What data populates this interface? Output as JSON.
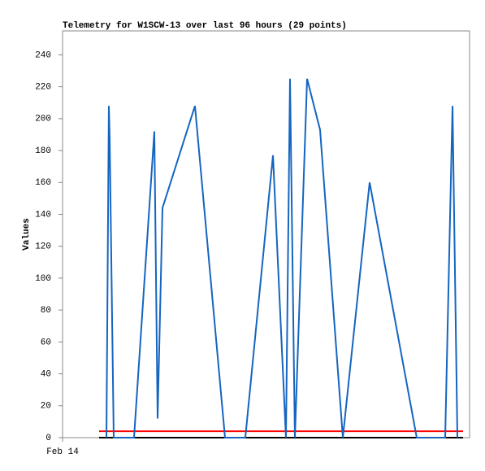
{
  "chart_data": {
    "type": "line",
    "title": "Telemetry for W1SCW-13 over last 96 hours (29 points)",
    "y_label": "Values",
    "xlim": [
      0,
      96
    ],
    "xticks": [
      {
        "value": 0,
        "label": "Feb 14"
      }
    ],
    "ylim": [
      0,
      255
    ],
    "yticks": [
      0,
      20,
      40,
      60,
      80,
      100,
      120,
      140,
      160,
      180,
      200,
      220,
      240
    ],
    "series": [
      {
        "color": "#000000",
        "x": [
          8.62,
          94.47
        ],
        "values": [
          0,
          0
        ]
      },
      {
        "color": "#ff0000",
        "x": [
          8.62,
          94.47
        ],
        "values": [
          4,
          4
        ]
      },
      {
        "color": "#1565c0",
        "x": [
          10.35,
          10.92,
          11.11,
          12.07,
          16.86,
          21.65,
          22.42,
          23.57,
          31.23,
          38.32,
          43.11,
          49.63,
          52.69,
          53.65,
          54.8,
          57.68,
          60.74,
          66.11,
          72.43,
          83.54,
          90.25,
          91.98,
          93.13
        ],
        "values": [
          0,
          208,
          188,
          0,
          0,
          192,
          12,
          144,
          208,
          0,
          0,
          177,
          0,
          225,
          0,
          225,
          193,
          0,
          160,
          0,
          0,
          208,
          0
        ]
      }
    ]
  }
}
